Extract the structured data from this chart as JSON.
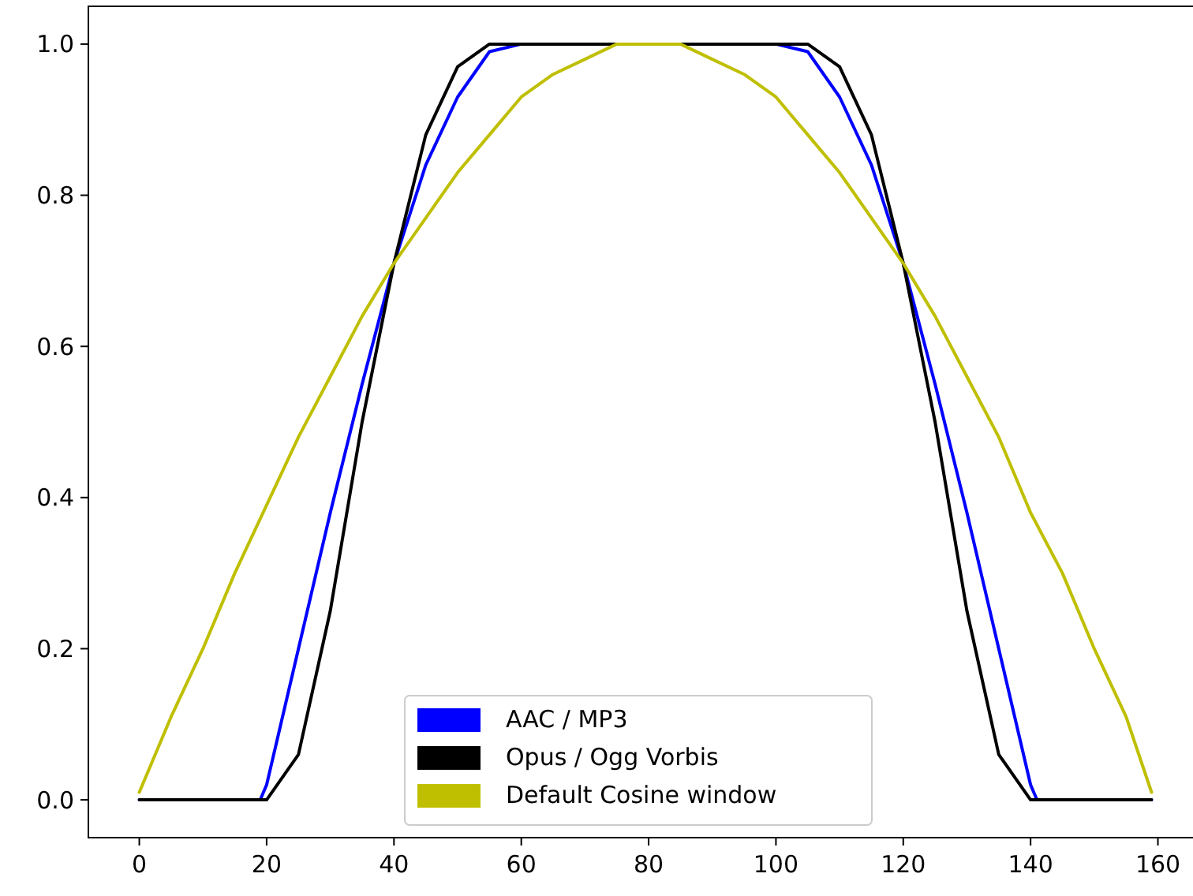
{
  "chart_data": {
    "type": "line",
    "xlim": [
      -8,
      167
    ],
    "ylim": [
      -0.05,
      1.05
    ],
    "xticks": [
      0,
      20,
      40,
      60,
      80,
      100,
      120,
      140,
      160
    ],
    "yticks": [
      {
        "value": 0,
        "label": "0.0"
      },
      {
        "value": 0.2,
        "label": "0.2"
      },
      {
        "value": 0.4,
        "label": "0.4"
      },
      {
        "value": 0.6,
        "label": "0.6"
      },
      {
        "value": 0.8,
        "label": "0.8"
      },
      {
        "value": 1,
        "label": "1.0"
      }
    ],
    "grid": false,
    "legend": "bottom",
    "marker": "none",
    "line_style": "solid",
    "series": [
      {
        "name": "AAC / MP3",
        "color": "#0000ff",
        "x": [
          0,
          19,
          20,
          25,
          30,
          35,
          40,
          45,
          50,
          55,
          60,
          100,
          105,
          110,
          115,
          120,
          125,
          130,
          135,
          140,
          141,
          159
        ],
        "values": [
          0,
          0,
          0.02,
          0.2,
          0.38,
          0.55,
          0.71,
          0.84,
          0.93,
          0.99,
          1,
          1,
          0.99,
          0.93,
          0.84,
          0.71,
          0.55,
          0.38,
          0.2,
          0.02,
          0,
          0
        ]
      },
      {
        "name": "Opus / Ogg Vorbis",
        "color": "#000000",
        "x": [
          0,
          19,
          20,
          25,
          30,
          35,
          40,
          45,
          50,
          55,
          60,
          100,
          105,
          110,
          115,
          120,
          125,
          130,
          135,
          140,
          159
        ],
        "values": [
          0,
          0,
          0,
          0.06,
          0.25,
          0.5,
          0.71,
          0.88,
          0.97,
          1,
          1,
          1,
          1,
          0.97,
          0.88,
          0.71,
          0.5,
          0.25,
          0.06,
          0,
          0
        ]
      },
      {
        "name": "Default Cosine window",
        "color": "#bfbf00",
        "x": [
          0,
          5,
          10,
          15,
          20,
          25,
          30,
          35,
          40,
          45,
          50,
          55,
          60,
          65,
          70,
          75,
          80,
          85,
          90,
          95,
          100,
          105,
          110,
          115,
          120,
          125,
          130,
          135,
          140,
          145,
          150,
          155,
          159
        ],
        "values": [
          0.01,
          0.11,
          0.2,
          0.3,
          0.39,
          0.48,
          0.56,
          0.64,
          0.71,
          0.77,
          0.83,
          0.88,
          0.93,
          0.96,
          0.98,
          1,
          1,
          1,
          0.98,
          0.96,
          0.93,
          0.88,
          0.83,
          0.77,
          0.71,
          0.64,
          0.56,
          0.48,
          0.38,
          0.3,
          0.2,
          0.11,
          0.01
        ]
      }
    ]
  }
}
